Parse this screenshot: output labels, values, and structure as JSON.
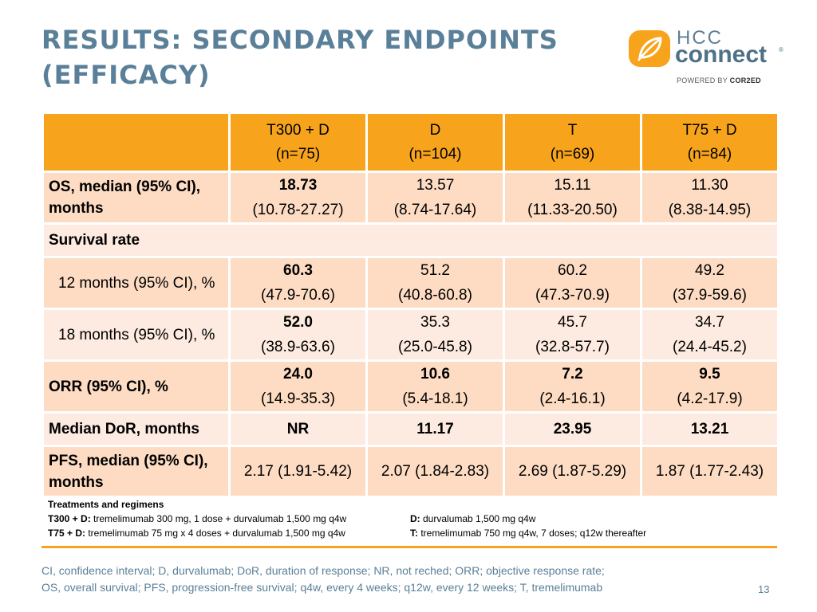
{
  "title": {
    "line1": "RESULTS: SECONDARY ENDPOINTS",
    "line2": "(EFFICACY)"
  },
  "logo": {
    "hcc": "HCC",
    "connect": "connect",
    "registered": "®",
    "powered_prefix": "POWERED BY ",
    "powered_brand": "COR2ED",
    "accent_color": "#f7a41c"
  },
  "table": {
    "columns": [
      {
        "name": "T300 + D",
        "n": "(n=75)"
      },
      {
        "name": "D",
        "n": "(n=104)"
      },
      {
        "name": "T",
        "n": "(n=69)"
      },
      {
        "name": "T75 + D",
        "n": "(n=84)"
      }
    ],
    "rows": {
      "os": {
        "label": "OS, median (95% CI), months",
        "cells": [
          {
            "top": "18.73",
            "bottom": "(10.78-27.27)"
          },
          {
            "top": "13.57",
            "bottom": "(8.74-17.64)"
          },
          {
            "top": "15.11",
            "bottom": "(11.33-20.50)"
          },
          {
            "top": "11.30",
            "bottom": "(8.38-14.95)"
          }
        ]
      },
      "survival_rate": {
        "label": "Survival rate"
      },
      "m12": {
        "label": "12 months (95% CI), %",
        "cells": [
          {
            "top": "60.3",
            "bottom": "(47.9-70.6)"
          },
          {
            "top": "51.2",
            "bottom": "(40.8-60.8)"
          },
          {
            "top": "60.2",
            "bottom": "(47.3-70.9)"
          },
          {
            "top": "49.2",
            "bottom": "(37.9-59.6)"
          }
        ]
      },
      "m18": {
        "label": "18 months (95% CI), %",
        "cells": [
          {
            "top": "52.0",
            "bottom": "(38.9-63.6)"
          },
          {
            "top": "35.3",
            "bottom": "(25.0-45.8)"
          },
          {
            "top": "45.7",
            "bottom": "(32.8-57.7)"
          },
          {
            "top": "34.7",
            "bottom": "(24.4-45.2)"
          }
        ]
      },
      "orr": {
        "label": "ORR (95% CI), %",
        "cells": [
          {
            "top": "24.0",
            "bottom": "(14.9-35.3)"
          },
          {
            "top": "10.6",
            "bottom": "(5.4-18.1)"
          },
          {
            "top": "7.2",
            "bottom": "(2.4-16.1)"
          },
          {
            "top": "9.5",
            "bottom": "(4.2-17.9)"
          }
        ]
      },
      "dor": {
        "label": "Median DoR, months",
        "cells": [
          "NR",
          "11.17",
          "23.95",
          "13.21"
        ]
      },
      "pfs": {
        "label": "PFS, median (95% CI), months",
        "cells": [
          "2.17 (1.91-5.42)",
          "2.07 (1.84-2.83)",
          "2.69 (1.87-5.29)",
          "1.87 (1.77-2.43)"
        ]
      }
    }
  },
  "treatments": {
    "heading": "Treatments and regimens",
    "items": [
      {
        "key": "T300 + D:",
        "text": " tremelimumab 300 mg, 1 dose + durvalumab 1,500 mg q4w"
      },
      {
        "key": "D:",
        "text": " durvalumab 1,500 mg q4w"
      },
      {
        "key": "T75 + D:",
        "text": " tremelimumab 75 mg x 4 doses + durvalumab 1,500 mg q4w"
      },
      {
        "key": "T:",
        "text": " tremelimumab 750 mg q4w, 7 doses; q12w thereafter"
      }
    ]
  },
  "abbreviations": {
    "line1": "CI, confidence interval; D, durvalumab; DoR, duration of response; NR, not reched; ORR; objective response rate;",
    "line2": "OS, overall survival; PFS, progression-free survival; q4w, every 4 weeks; q12w, every 12 weeks; T, tremelimumab"
  },
  "page_number": "13",
  "colors": {
    "title": "#5a7f98",
    "header_fill": "#f7a41c",
    "row_dark": "#fddcc3",
    "row_light": "#fdeae0"
  }
}
